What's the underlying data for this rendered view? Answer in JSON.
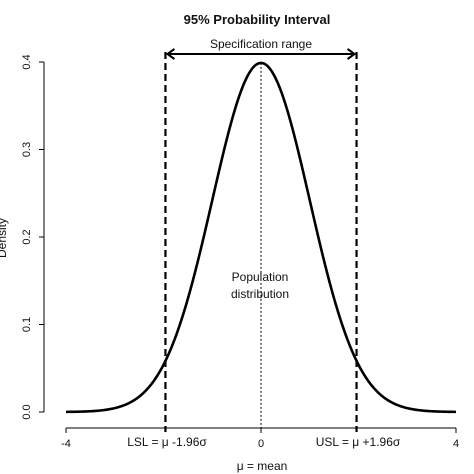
{
  "chart_data": {
    "type": "line",
    "title": "95%  Probability Interval",
    "xlabel": "μ = mean",
    "ylabel": "Density",
    "xlim": [
      -4,
      4
    ],
    "ylim": [
      0,
      0.4
    ],
    "x_ticks": [
      -4,
      0,
      4
    ],
    "y_ticks": [
      0.0,
      0.1,
      0.2,
      0.3,
      0.4
    ],
    "x_tick_labels": [
      "-4",
      "0",
      "4"
    ],
    "y_tick_labels": [
      "0.0",
      "0.1",
      "0.2",
      "0.3",
      "0.4"
    ],
    "series": [
      {
        "distribution": "standard normal",
        "x": [
          -4.0,
          -3.5,
          -3.0,
          -2.5,
          -2.0,
          -1.96,
          -1.5,
          -1.0,
          -0.5,
          0.0,
          0.5,
          1.0,
          1.5,
          1.96,
          2.0,
          2.5,
          3.0,
          3.5,
          4.0
        ],
        "y": [
          0.0001,
          0.0009,
          0.0044,
          0.0175,
          0.054,
          0.0584,
          0.1295,
          0.242,
          0.3521,
          0.3989,
          0.3521,
          0.242,
          0.1295,
          0.0584,
          0.054,
          0.0175,
          0.0044,
          0.0009,
          0.0001
        ]
      }
    ],
    "mean_line_x": 0,
    "spec_limits": [
      -1.96,
      1.96
    ],
    "annotations": {
      "spec_range": "Specification range",
      "population_line1": "Population",
      "population_line2": "distribution",
      "lsl": "LSL = μ -1.96σ",
      "usl": "USL = μ +1.96σ"
    },
    "grid": false,
    "colors": {
      "line": "#000000",
      "text": "#111111"
    }
  }
}
